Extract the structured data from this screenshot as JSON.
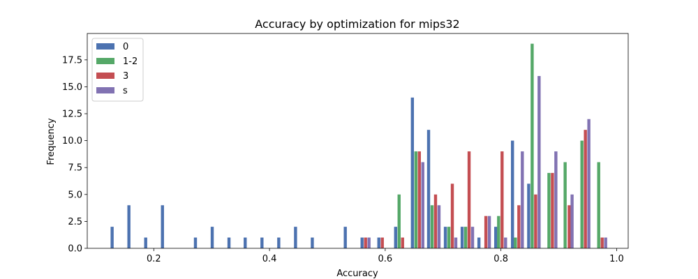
{
  "chart_data": {
    "type": "bar",
    "title": "Accuracy by optimization for mips32",
    "xlabel": "Accuracy",
    "ylabel": "Frequency",
    "xlim": [
      0.085,
      1.02
    ],
    "ylim": [
      0,
      19.95
    ],
    "xticks": [
      0.2,
      0.4,
      0.6,
      0.8,
      1.0
    ],
    "xtick_labels": [
      "0.2",
      "0.4",
      "0.6",
      "0.8",
      "1.0"
    ],
    "yticks": [
      0,
      2.5,
      5,
      7.5,
      10,
      12.5,
      15,
      17.5
    ],
    "ytick_labels": [
      "0.0",
      "2.5",
      "5.0",
      "7.5",
      "10.0",
      "12.5",
      "15.0",
      "17.5"
    ],
    "legend_position": "top-left",
    "series": [
      {
        "name": "0",
        "color": "#4c72b0",
        "points": [
          {
            "x": 0.128,
            "y": 2
          },
          {
            "x": 0.157,
            "y": 4
          },
          {
            "x": 0.186,
            "y": 1
          },
          {
            "x": 0.215,
            "y": 4
          },
          {
            "x": 0.272,
            "y": 1
          },
          {
            "x": 0.301,
            "y": 2
          },
          {
            "x": 0.33,
            "y": 1
          },
          {
            "x": 0.358,
            "y": 1
          },
          {
            "x": 0.387,
            "y": 1
          },
          {
            "x": 0.416,
            "y": 1
          },
          {
            "x": 0.445,
            "y": 2
          },
          {
            "x": 0.474,
            "y": 1
          },
          {
            "x": 0.531,
            "y": 2
          },
          {
            "x": 0.56,
            "y": 1
          },
          {
            "x": 0.589,
            "y": 1
          },
          {
            "x": 0.618,
            "y": 2
          },
          {
            "x": 0.647,
            "y": 14
          },
          {
            "x": 0.675,
            "y": 11
          },
          {
            "x": 0.704,
            "y": 2
          },
          {
            "x": 0.733,
            "y": 2
          },
          {
            "x": 0.762,
            "y": 1
          },
          {
            "x": 0.791,
            "y": 2
          },
          {
            "x": 0.82,
            "y": 10
          },
          {
            "x": 0.848,
            "y": 6
          }
        ]
      },
      {
        "name": "1-2",
        "color": "#55a868",
        "points": [
          {
            "x": 0.624,
            "y": 5
          },
          {
            "x": 0.653,
            "y": 9
          },
          {
            "x": 0.681,
            "y": 4
          },
          {
            "x": 0.71,
            "y": 2
          },
          {
            "x": 0.739,
            "y": 2
          },
          {
            "x": 0.796,
            "y": 3
          },
          {
            "x": 0.825,
            "y": 1
          },
          {
            "x": 0.854,
            "y": 19
          },
          {
            "x": 0.883,
            "y": 7
          },
          {
            "x": 0.911,
            "y": 8
          },
          {
            "x": 0.94,
            "y": 10
          },
          {
            "x": 0.969,
            "y": 8
          }
        ]
      },
      {
        "name": "3",
        "color": "#c44e52",
        "points": [
          {
            "x": 0.566,
            "y": 1
          },
          {
            "x": 0.595,
            "y": 1
          },
          {
            "x": 0.63,
            "y": 1
          },
          {
            "x": 0.659,
            "y": 9
          },
          {
            "x": 0.687,
            "y": 5
          },
          {
            "x": 0.716,
            "y": 6
          },
          {
            "x": 0.745,
            "y": 9
          },
          {
            "x": 0.774,
            "y": 3
          },
          {
            "x": 0.802,
            "y": 9
          },
          {
            "x": 0.831,
            "y": 4
          },
          {
            "x": 0.86,
            "y": 5
          },
          {
            "x": 0.889,
            "y": 7
          },
          {
            "x": 0.918,
            "y": 4
          },
          {
            "x": 0.946,
            "y": 11
          },
          {
            "x": 0.975,
            "y": 1
          }
        ]
      },
      {
        "name": "s",
        "color": "#8172b2",
        "points": [
          {
            "x": 0.572,
            "y": 1
          },
          {
            "x": 0.665,
            "y": 8
          },
          {
            "x": 0.693,
            "y": 4
          },
          {
            "x": 0.722,
            "y": 1
          },
          {
            "x": 0.751,
            "y": 2
          },
          {
            "x": 0.78,
            "y": 3
          },
          {
            "x": 0.808,
            "y": 1
          },
          {
            "x": 0.837,
            "y": 9
          },
          {
            "x": 0.866,
            "y": 16
          },
          {
            "x": 0.895,
            "y": 9
          },
          {
            "x": 0.923,
            "y": 5
          },
          {
            "x": 0.952,
            "y": 12
          },
          {
            "x": 0.981,
            "y": 1
          }
        ]
      }
    ]
  }
}
